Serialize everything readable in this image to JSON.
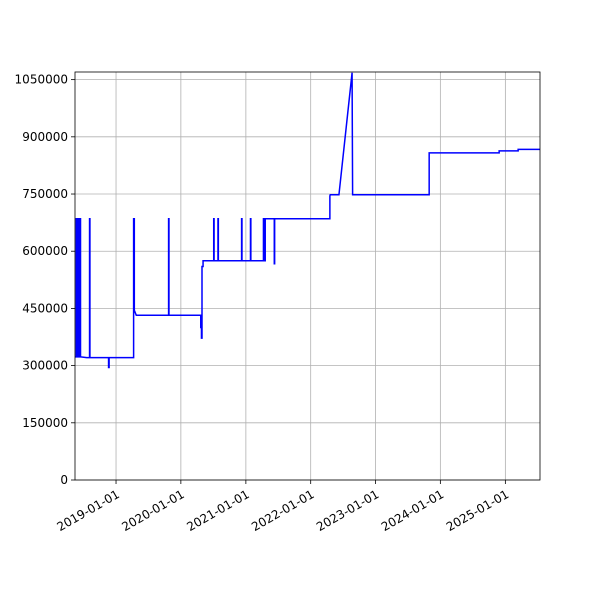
{
  "chart_data": {
    "type": "line",
    "title": "",
    "xlabel": "",
    "ylabel": "",
    "grid": true,
    "line_color": "#0000ff",
    "xlim": [
      "2018-05-15",
      "2025-07-15"
    ],
    "ylim": [
      0,
      1070000
    ],
    "x_ticks": [
      "2019-01-01",
      "2020-01-01",
      "2021-01-01",
      "2022-01-01",
      "2023-01-01",
      "2024-01-01",
      "2025-01-01"
    ],
    "y_ticks": [
      {
        "value": 0,
        "label": "0"
      },
      {
        "value": 150000,
        "label": "150000"
      },
      {
        "value": 300000,
        "label": "300000"
      },
      {
        "value": 450000,
        "label": "450000"
      },
      {
        "value": 600000,
        "label": "600000"
      },
      {
        "value": 750000,
        "label": "750000"
      },
      {
        "value": 900000,
        "label": "900000"
      },
      {
        "value": 1050000,
        "label": "1050000"
      }
    ],
    "series": [
      {
        "points": [
          [
            "2018-05-15",
            323000
          ],
          [
            "2018-05-22",
            323000
          ],
          [
            "2018-05-22",
            685000
          ],
          [
            "2018-05-25",
            685000
          ],
          [
            "2018-05-25",
            323000
          ],
          [
            "2018-05-28",
            323000
          ],
          [
            "2018-05-28",
            685000
          ],
          [
            "2018-05-31",
            685000
          ],
          [
            "2018-05-31",
            323000
          ],
          [
            "2018-06-03",
            323000
          ],
          [
            "2018-06-03",
            685000
          ],
          [
            "2018-06-05",
            685000
          ],
          [
            "2018-06-05",
            323000
          ],
          [
            "2018-06-08",
            323000
          ],
          [
            "2018-06-08",
            685000
          ],
          [
            "2018-06-11",
            685000
          ],
          [
            "2018-06-11",
            323000
          ],
          [
            "2018-06-13",
            323000
          ],
          [
            "2018-06-13",
            685000
          ],
          [
            "2018-06-15",
            685000
          ],
          [
            "2018-06-15",
            323000
          ],
          [
            "2018-07-20",
            321000
          ],
          [
            "2018-08-05",
            321000
          ],
          [
            "2018-08-05",
            685000
          ],
          [
            "2018-08-07",
            685000
          ],
          [
            "2018-08-07",
            321000
          ],
          [
            "2018-11-20",
            321000
          ],
          [
            "2018-11-20",
            295000
          ],
          [
            "2018-11-23",
            295000
          ],
          [
            "2018-11-23",
            321000
          ],
          [
            "2019-04-10",
            321000
          ],
          [
            "2019-04-10",
            685000
          ],
          [
            "2019-04-14",
            685000
          ],
          [
            "2019-04-14",
            445000
          ],
          [
            "2019-04-25",
            432000
          ],
          [
            "2019-10-24",
            432000
          ],
          [
            "2019-10-24",
            685000
          ],
          [
            "2019-10-26",
            685000
          ],
          [
            "2019-10-26",
            432000
          ],
          [
            "2020-04-22",
            432000
          ],
          [
            "2020-04-22",
            400000
          ],
          [
            "2020-04-26",
            400000
          ],
          [
            "2020-04-26",
            372000
          ],
          [
            "2020-04-29",
            372000
          ],
          [
            "2020-04-29",
            560000
          ],
          [
            "2020-05-05",
            560000
          ],
          [
            "2020-05-05",
            575000
          ],
          [
            "2020-07-04",
            575000
          ],
          [
            "2020-07-04",
            685000
          ],
          [
            "2020-07-06",
            685000
          ],
          [
            "2020-07-06",
            575000
          ],
          [
            "2020-07-28",
            575000
          ],
          [
            "2020-07-28",
            685000
          ],
          [
            "2020-07-30",
            685000
          ],
          [
            "2020-07-30",
            575000
          ],
          [
            "2020-12-08",
            575000
          ],
          [
            "2020-12-08",
            685000
          ],
          [
            "2020-12-10",
            685000
          ],
          [
            "2020-12-10",
            575000
          ],
          [
            "2021-01-27",
            575000
          ],
          [
            "2021-01-27",
            685000
          ],
          [
            "2021-01-29",
            685000
          ],
          [
            "2021-01-29",
            575000
          ],
          [
            "2021-04-10",
            575000
          ],
          [
            "2021-04-10",
            685000
          ],
          [
            "2021-04-13",
            685000
          ],
          [
            "2021-04-13",
            575000
          ],
          [
            "2021-04-20",
            575000
          ],
          [
            "2021-04-20",
            685000
          ],
          [
            "2021-06-10",
            685000
          ],
          [
            "2021-06-10",
            567000
          ],
          [
            "2021-06-12",
            567000
          ],
          [
            "2021-06-12",
            685000
          ],
          [
            "2022-04-19",
            685000
          ],
          [
            "2022-04-19",
            745000
          ],
          [
            "2022-04-21",
            748000
          ],
          [
            "2022-06-09",
            748000
          ],
          [
            "2022-08-22",
            1068000
          ],
          [
            "2022-08-25",
            748000
          ],
          [
            "2023-10-30",
            748000
          ],
          [
            "2023-10-30",
            858000
          ],
          [
            "2024-11-27",
            858000
          ],
          [
            "2024-11-27",
            863000
          ],
          [
            "2025-03-14",
            863000
          ],
          [
            "2025-03-14",
            867000
          ],
          [
            "2025-07-15",
            867000
          ]
        ]
      }
    ]
  }
}
